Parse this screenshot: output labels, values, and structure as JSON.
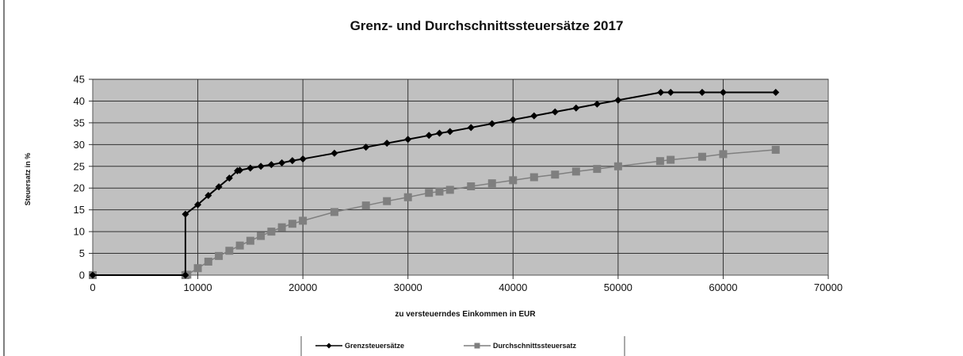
{
  "chart_data": {
    "type": "line",
    "title": "Grenz- und Durchschnittssteuersätze 2017",
    "xlabel": "zu versteuerndes Einkommen in EUR",
    "ylabel": "Steuersatz in %",
    "xlim": [
      0,
      70000
    ],
    "ylim": [
      0,
      45
    ],
    "xticks": [
      "0",
      "10000",
      "20000",
      "30000",
      "40000",
      "50000",
      "60000",
      "70000"
    ],
    "yticks": [
      "0",
      "5",
      "10",
      "15",
      "20",
      "25",
      "30",
      "35",
      "40",
      "45"
    ],
    "grid": true,
    "plot_background": "#c0c0c0",
    "legend_position": "bottom",
    "series": [
      {
        "name": "Grenzsteuersätze",
        "color": "#000000",
        "marker": "diamond",
        "points": [
          [
            0,
            0
          ],
          [
            8820,
            0
          ],
          [
            8820,
            14
          ],
          [
            10000,
            16.2
          ],
          [
            11000,
            18.3
          ],
          [
            12000,
            20.3
          ],
          [
            13000,
            22.3
          ],
          [
            13770,
            23.97
          ],
          [
            14000,
            24.1
          ],
          [
            15000,
            24.6
          ],
          [
            16000,
            25.0
          ],
          [
            17000,
            25.4
          ],
          [
            18000,
            25.8
          ],
          [
            19000,
            26.3
          ],
          [
            20000,
            26.7
          ],
          [
            23000,
            28.0
          ],
          [
            26000,
            29.4
          ],
          [
            28000,
            30.3
          ],
          [
            30000,
            31.2
          ],
          [
            32000,
            32.1
          ],
          [
            33000,
            32.6
          ],
          [
            34000,
            33.0
          ],
          [
            36000,
            33.9
          ],
          [
            38000,
            34.8
          ],
          [
            40000,
            35.7
          ],
          [
            42000,
            36.6
          ],
          [
            44000,
            37.5
          ],
          [
            46000,
            38.4
          ],
          [
            48000,
            39.3
          ],
          [
            50000,
            40.2
          ],
          [
            54057,
            42
          ],
          [
            55000,
            42
          ],
          [
            58000,
            42
          ],
          [
            60000,
            42
          ],
          [
            65000,
            42
          ]
        ]
      },
      {
        "name": "Durchschnittssteuersatz",
        "color": "#7f7f7f",
        "marker": "square",
        "points": [
          [
            0,
            0
          ],
          [
            8820,
            0
          ],
          [
            9000,
            0.1
          ],
          [
            10000,
            1.6
          ],
          [
            11000,
            3.1
          ],
          [
            12000,
            4.4
          ],
          [
            13000,
            5.6
          ],
          [
            14000,
            6.8
          ],
          [
            15000,
            7.9
          ],
          [
            16000,
            9.0
          ],
          [
            17000,
            10.0
          ],
          [
            18000,
            11.0
          ],
          [
            19000,
            11.8
          ],
          [
            20000,
            12.5
          ],
          [
            23000,
            14.5
          ],
          [
            26000,
            16.0
          ],
          [
            28000,
            17.0
          ],
          [
            30000,
            17.9
          ],
          [
            32000,
            18.9
          ],
          [
            33000,
            19.2
          ],
          [
            34000,
            19.6
          ],
          [
            36000,
            20.4
          ],
          [
            38000,
            21.1
          ],
          [
            40000,
            21.8
          ],
          [
            42000,
            22.5
          ],
          [
            44000,
            23.1
          ],
          [
            46000,
            23.8
          ],
          [
            48000,
            24.4
          ],
          [
            50000,
            25.0
          ],
          [
            54000,
            26.2
          ],
          [
            55000,
            26.5
          ],
          [
            58000,
            27.2
          ],
          [
            60000,
            27.8
          ],
          [
            65000,
            28.8
          ]
        ]
      }
    ]
  }
}
